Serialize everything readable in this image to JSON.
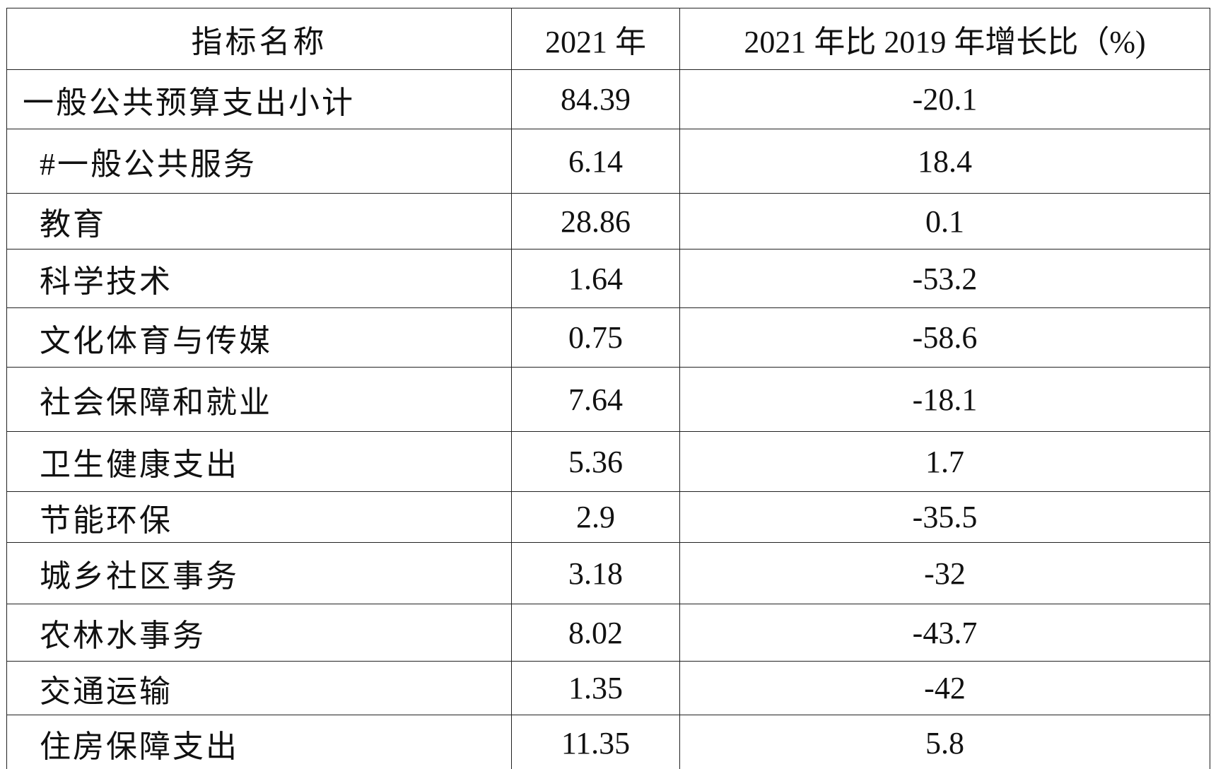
{
  "table": {
    "header": [
      "指标名称",
      "2021 年",
      "2021 年比 2019 年增长比（%)"
    ],
    "rows": [
      [
        "一般公共预算支出小计",
        "84.39",
        "-20.1"
      ],
      [
        "#一般公共服务",
        "6.14",
        "18.4"
      ],
      [
        "教育",
        "28.86",
        "0.1"
      ],
      [
        "科学技术",
        "1.64",
        "-53.2"
      ],
      [
        "文化体育与传媒",
        "0.75",
        "-58.6"
      ],
      [
        "社会保障和就业",
        "7.64",
        "-18.1"
      ],
      [
        "卫生健康支出",
        "5.36",
        "1.7"
      ],
      [
        "节能环保",
        "2.9",
        "-35.5"
      ],
      [
        "城乡社区事务",
        "3.18",
        "-32"
      ],
      [
        "农林水事务",
        "8.02",
        "-43.7"
      ],
      [
        "交通运输",
        "1.35",
        "-42"
      ],
      [
        "住房保障支出",
        "11.35",
        "5.8"
      ]
    ]
  }
}
